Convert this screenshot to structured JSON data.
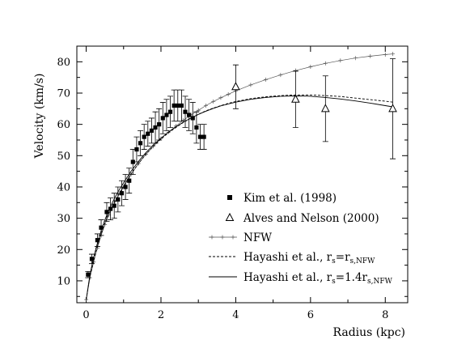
{
  "chart_data": {
    "type": "scatter",
    "xlabel": "Radius (kpc)",
    "ylabel": "Velocity (km/s)",
    "xlim": [
      -0.25,
      8.6
    ],
    "ylim": [
      3,
      85
    ],
    "xticks": [
      "0",
      "2",
      "4",
      "6",
      "8"
    ],
    "xtick_values": [
      0,
      2,
      4,
      6,
      8
    ],
    "yticks": [
      "10",
      "20",
      "30",
      "40",
      "50",
      "60",
      "70",
      "80"
    ],
    "ytick_values": [
      10,
      20,
      30,
      40,
      50,
      60,
      70,
      80
    ],
    "grid": false,
    "legend_position": "lower-right",
    "legend": [
      {
        "label": "Kim et al. (1998)",
        "marker": "filled-square"
      },
      {
        "label": "Alves and Nelson (2000)",
        "marker": "open-triangle"
      },
      {
        "label": "NFW",
        "marker": "line-plus"
      },
      {
        "label_main": "Hayashi et al., r",
        "label_sub": "s",
        "label_eq": "=r",
        "label_sub2": "s,NFW",
        "marker": "dashed-line"
      },
      {
        "label_main": "Hayashi et al., r",
        "label_sub": "s",
        "label_eq": "=1.4r",
        "label_sub2": "s,NFW",
        "marker": "solid-line"
      }
    ],
    "series": [
      {
        "name": "Kim et al. (1998)",
        "kind": "points",
        "marker": "filled-square",
        "x": [
          0.05,
          0.15,
          0.3,
          0.4,
          0.55,
          0.65,
          0.75,
          0.85,
          0.95,
          1.05,
          1.15,
          1.25,
          1.35,
          1.45,
          1.55,
          1.65,
          1.75,
          1.85,
          1.95,
          2.05,
          2.15,
          2.25,
          2.35,
          2.45,
          2.55,
          2.65,
          2.75,
          2.85,
          2.95,
          3.05,
          3.15
        ],
        "y": [
          12,
          17,
          23,
          27,
          32,
          33,
          34,
          36,
          38,
          40,
          42,
          48,
          52,
          54,
          56,
          57,
          58,
          59,
          60,
          62,
          63,
          64,
          66,
          66,
          66,
          64,
          63,
          62,
          59,
          56,
          56
        ],
        "err": [
          1,
          1.5,
          2,
          2.5,
          3,
          3.5,
          4,
          4,
          4,
          4,
          4,
          4,
          4,
          4,
          4,
          4,
          4,
          5,
          5,
          5,
          5,
          5,
          5,
          5,
          5,
          5,
          5,
          5,
          5,
          4,
          4
        ]
      },
      {
        "name": "Alves and Nelson (2000)",
        "kind": "points",
        "marker": "open-triangle",
        "x": [
          4.0,
          5.6,
          6.4,
          8.2
        ],
        "y": [
          72,
          68,
          65,
          65
        ],
        "err": [
          7,
          9,
          10.5,
          16
        ]
      },
      {
        "name": "NFW",
        "kind": "line",
        "style": "thin-plus",
        "x": [
          0.0,
          0.1,
          0.2,
          0.3,
          0.4,
          0.5,
          0.6,
          0.7,
          0.8,
          0.9,
          1.0,
          1.2,
          1.4,
          1.6,
          1.8,
          2.0,
          2.2,
          2.4,
          2.6,
          2.8,
          3.0,
          3.2,
          3.4,
          3.6,
          3.8,
          4.0,
          4.4,
          4.8,
          5.2,
          5.6,
          6.0,
          6.4,
          6.8,
          7.2,
          7.6,
          8.0,
          8.2
        ],
        "y": [
          4,
          11,
          16,
          20.5,
          24.5,
          28,
          31,
          33.5,
          35.8,
          38,
          40,
          44,
          47.5,
          50.5,
          53,
          55.5,
          57.5,
          59.5,
          61.3,
          63,
          64.5,
          66,
          67.3,
          68.5,
          69.6,
          70.7,
          72.6,
          74.3,
          75.8,
          77.2,
          78.4,
          79.5,
          80.4,
          81.2,
          81.8,
          82.3,
          82.5
        ]
      },
      {
        "name": "Hayashi et al., r_s=r_s,NFW",
        "kind": "line",
        "style": "dashed",
        "x": [
          0.0,
          0.1,
          0.2,
          0.3,
          0.4,
          0.5,
          0.6,
          0.7,
          0.8,
          0.9,
          1.0,
          1.2,
          1.4,
          1.6,
          1.8,
          2.0,
          2.2,
          2.4,
          2.6,
          2.8,
          3.0,
          3.2,
          3.4,
          3.6,
          3.8,
          4.0,
          4.4,
          4.8,
          5.2,
          5.6,
          6.0,
          6.4,
          6.8,
          7.2,
          7.6,
          8.0,
          8.2
        ],
        "y": [
          4,
          11.5,
          16.5,
          21,
          25,
          28.5,
          31.5,
          34,
          36.2,
          38.3,
          40.3,
          44.2,
          47.5,
          50.5,
          53,
          55.3,
          57.3,
          59,
          60.6,
          62,
          63.2,
          64.3,
          65.2,
          66,
          66.7,
          67.3,
          68.2,
          68.8,
          69.2,
          69.4,
          69.4,
          69.2,
          68.9,
          68.4,
          67.9,
          67.4,
          67.1
        ]
      },
      {
        "name": "Hayashi et al., r_s=1.4r_s,NFW",
        "kind": "line",
        "style": "solid",
        "x": [
          0.0,
          0.1,
          0.2,
          0.3,
          0.4,
          0.5,
          0.6,
          0.7,
          0.8,
          0.9,
          1.0,
          1.2,
          1.4,
          1.6,
          1.8,
          2.0,
          2.2,
          2.4,
          2.6,
          2.8,
          3.0,
          3.2,
          3.4,
          3.6,
          3.8,
          4.0,
          4.4,
          4.8,
          5.2,
          5.6,
          6.0,
          6.4,
          6.8,
          7.2,
          7.6,
          8.0,
          8.2
        ],
        "y": [
          4,
          12,
          17.5,
          22,
          26,
          29.5,
          32.5,
          35,
          37.3,
          39.4,
          41.3,
          45,
          48.2,
          51,
          53.5,
          55.6,
          57.5,
          59.2,
          60.7,
          62,
          63.2,
          64.2,
          65.1,
          65.9,
          66.5,
          67.1,
          68,
          68.6,
          69,
          69.1,
          69,
          68.6,
          68.1,
          67.5,
          66.8,
          66,
          65.6
        ]
      }
    ]
  }
}
